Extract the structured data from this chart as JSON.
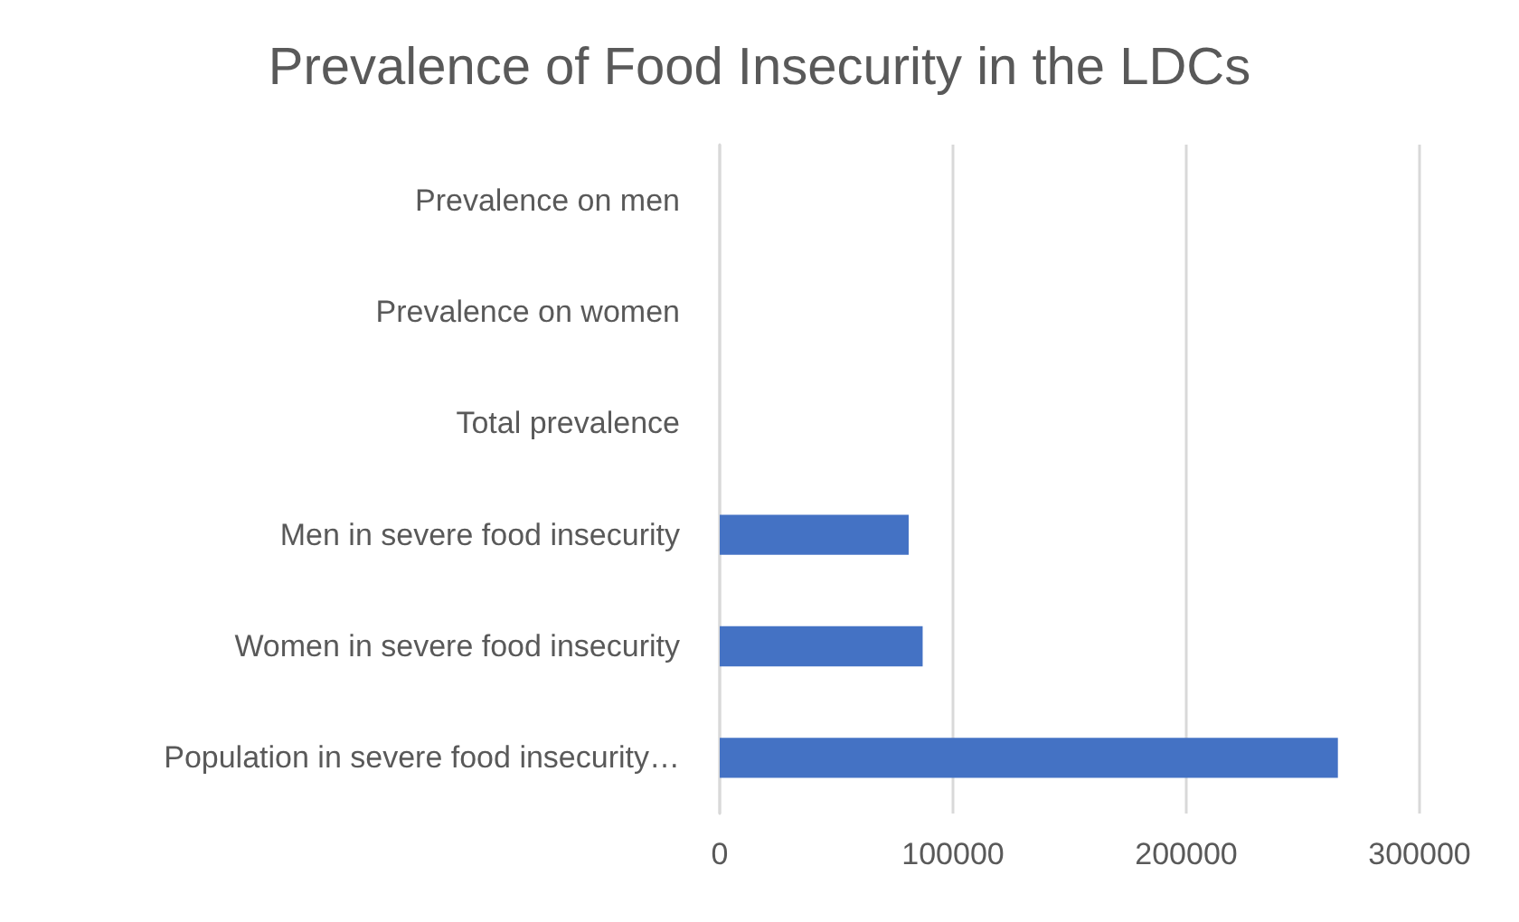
{
  "chart_data": {
    "type": "bar",
    "orientation": "horizontal",
    "title": "Prevalence of Food Insecurity in the LDCs",
    "categories": [
      "Prevalence on men",
      "Prevalence on women",
      "Total prevalence",
      "Men in severe food insecurity",
      "Women in severe food insecurity",
      "Population in severe food insecurity…"
    ],
    "values": [
      null,
      null,
      null,
      81000,
      87000,
      265000
    ],
    "color": "#4472c4",
    "xlim": [
      0,
      300000
    ],
    "xticks": [
      0,
      100000,
      200000,
      300000
    ],
    "grid": "x"
  }
}
